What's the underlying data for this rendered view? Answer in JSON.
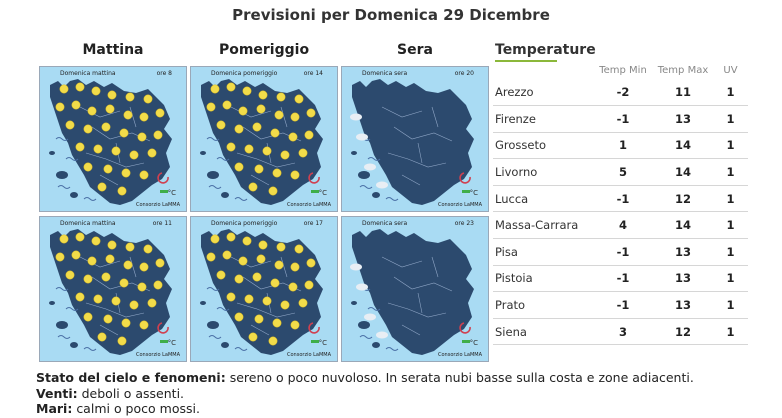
{
  "title": "Previsioni per Domenica 29 Dicembre",
  "periods": [
    {
      "name": "Mattina"
    },
    {
      "name": "Pomeriggio"
    },
    {
      "name": "Sera"
    }
  ],
  "panels": [
    {
      "label": "Domenica mattina",
      "time": "ore 8",
      "icon": "sun",
      "credit": "Consorzio LaMMA",
      "legend": "°C"
    },
    {
      "label": "Domenica pomeriggio",
      "time": "ore 14",
      "icon": "sun",
      "credit": "Consorzio LaMMA",
      "legend": "°C"
    },
    {
      "label": "Domenica sera",
      "time": "ore 20",
      "icon": "moon",
      "credit": "Consorzio LaMMA",
      "legend": "°C"
    },
    {
      "label": "Domenica mattina",
      "time": "ore 11",
      "icon": "sun",
      "credit": "Consorzio LaMMA",
      "legend": "°C"
    },
    {
      "label": "Domenica pomeriggio",
      "time": "ore 17",
      "icon": "sun",
      "credit": "Consorzio LaMMA",
      "legend": "°C"
    },
    {
      "label": "Domenica sera",
      "time": "ore 23",
      "icon": "moon",
      "credit": "Consorzio LaMMA",
      "legend": "°C"
    }
  ],
  "temperature": {
    "title": "Temperature",
    "headers": {
      "min": "Temp Min",
      "max": "Temp Max",
      "uv": "UV"
    },
    "rows": [
      {
        "city": "Arezzo",
        "min": "-2",
        "max": "11",
        "uv": "1"
      },
      {
        "city": "Firenze",
        "min": "-1",
        "max": "13",
        "uv": "1"
      },
      {
        "city": "Grosseto",
        "min": "1",
        "max": "14",
        "uv": "1"
      },
      {
        "city": "Livorno",
        "min": "5",
        "max": "14",
        "uv": "1"
      },
      {
        "city": "Lucca",
        "min": "-1",
        "max": "12",
        "uv": "1"
      },
      {
        "city": "Massa-Carrara",
        "min": "4",
        "max": "14",
        "uv": "1"
      },
      {
        "city": "Pisa",
        "min": "-1",
        "max": "13",
        "uv": "1"
      },
      {
        "city": "Pistoia",
        "min": "-1",
        "max": "13",
        "uv": "1"
      },
      {
        "city": "Prato",
        "min": "-1",
        "max": "13",
        "uv": "1"
      },
      {
        "city": "Siena",
        "min": "3",
        "max": "12",
        "uv": "1"
      }
    ]
  },
  "summary": {
    "sky_label": "Stato del cielo e fenomeni:",
    "sky_text": "sereno o poco nuvoloso. In serata nubi basse sulla costa e zone adiacenti.",
    "wind_label": "Venti:",
    "wind_text": "deboli o assenti.",
    "sea_label": "Mari:",
    "sea_text": "calmi o poco mossi."
  },
  "colors": {
    "sea": "#a9dbf3",
    "land": "#2c4a6e",
    "sun": "#f2dc4a",
    "moon": "#f2dc4a",
    "accent_green": "#8bb83a"
  }
}
